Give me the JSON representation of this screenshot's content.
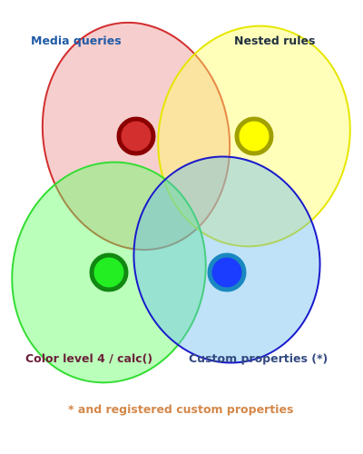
{
  "diagram": {
    "sets": [
      {
        "key": "media",
        "label": "Media queries",
        "fill": "#e57373",
        "stroke": "#d32f2f",
        "dot_fill": "#d32f2f",
        "dot_ring": "#8b0000",
        "label_color": "#1f5aa6"
      },
      {
        "key": "nested",
        "label": "Nested rules",
        "fill": "#ffff66",
        "stroke": "#e6e600",
        "dot_fill": "#ffff00",
        "dot_ring": "#a0a000",
        "label_color": "#1f2f3f"
      },
      {
        "key": "color",
        "label": "Color level 4 / calc()",
        "fill": "#66ff66",
        "stroke": "#33dd33",
        "dot_fill": "#22ee22",
        "dot_ring": "#118811",
        "label_color": "#6b1f3a"
      },
      {
        "key": "custom",
        "label": "Custom properties (*)",
        "fill": "#66bbee",
        "stroke": "#1a1acc",
        "dot_fill": "#1a3dff",
        "dot_ring": "#1a88c0",
        "label_color": "#334a80"
      }
    ],
    "footnote": "* and registered custom properties",
    "footnote_color": "#d4884a"
  }
}
